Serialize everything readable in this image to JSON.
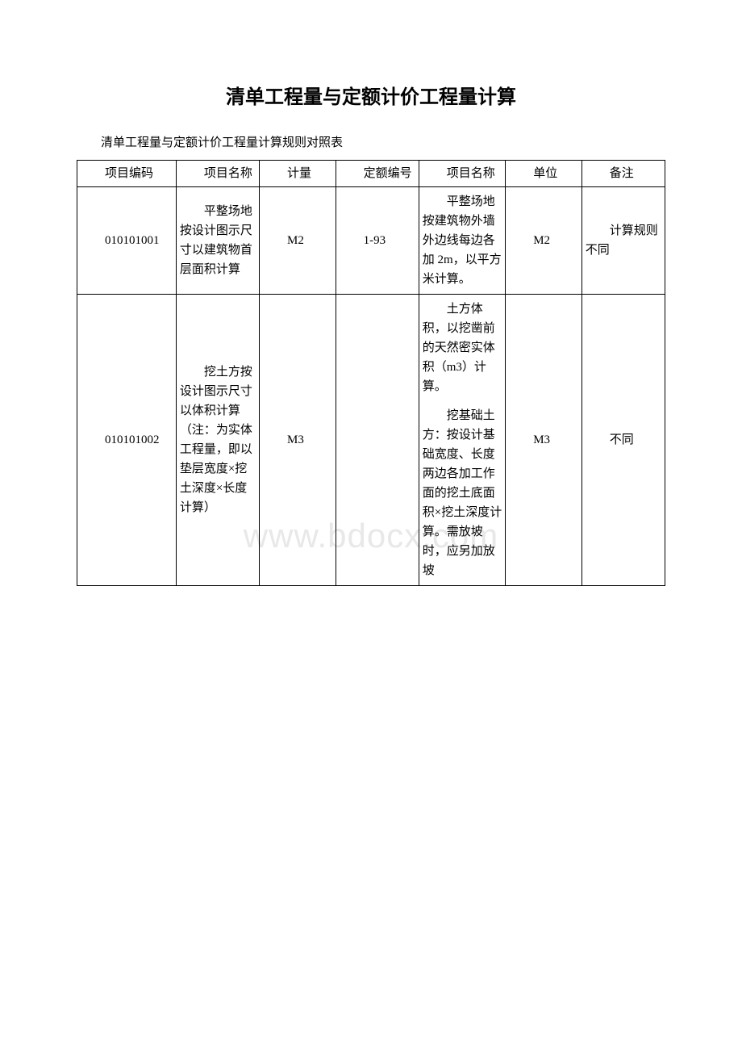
{
  "title": "清单工程量与定额计价工程量计算",
  "subtitle": "清单工程量与定额计价工程量计算规则对照表",
  "watermark": "www.bdocx.com",
  "headers": {
    "col1": "项目编码",
    "col2": "项目名称",
    "col3": "计量",
    "col4": "定额编号",
    "col5": "项目名称",
    "col6": "单位",
    "col7": "备注"
  },
  "rows": [
    {
      "code": "010101001",
      "name1": "平整场地按设计图示尺寸以建筑物首层面积计算",
      "unit1": "M2",
      "quota": "1-93",
      "name2": "平整场地按建筑物外墙外边线每边各加 2m，以平方米计算。",
      "unit2": "M2",
      "remark": "计算规则不同"
    },
    {
      "code": "010101002",
      "name1": "挖土方按设计图示尺寸以体积计算（注：为实体工程量，即以垫层宽度×挖土深度×长度计算）",
      "unit1": "M3",
      "quota": "",
      "name2_p1": "土方体积，以挖凿前的天然密实体积（m3）计算。",
      "name2_p2": "挖基础土方：按设计基础宽度、长度两边各加工作面的挖土底面积×挖土深度计算。需放坡时，应另加放坡",
      "unit2": "M3",
      "remark": "不同"
    }
  ]
}
